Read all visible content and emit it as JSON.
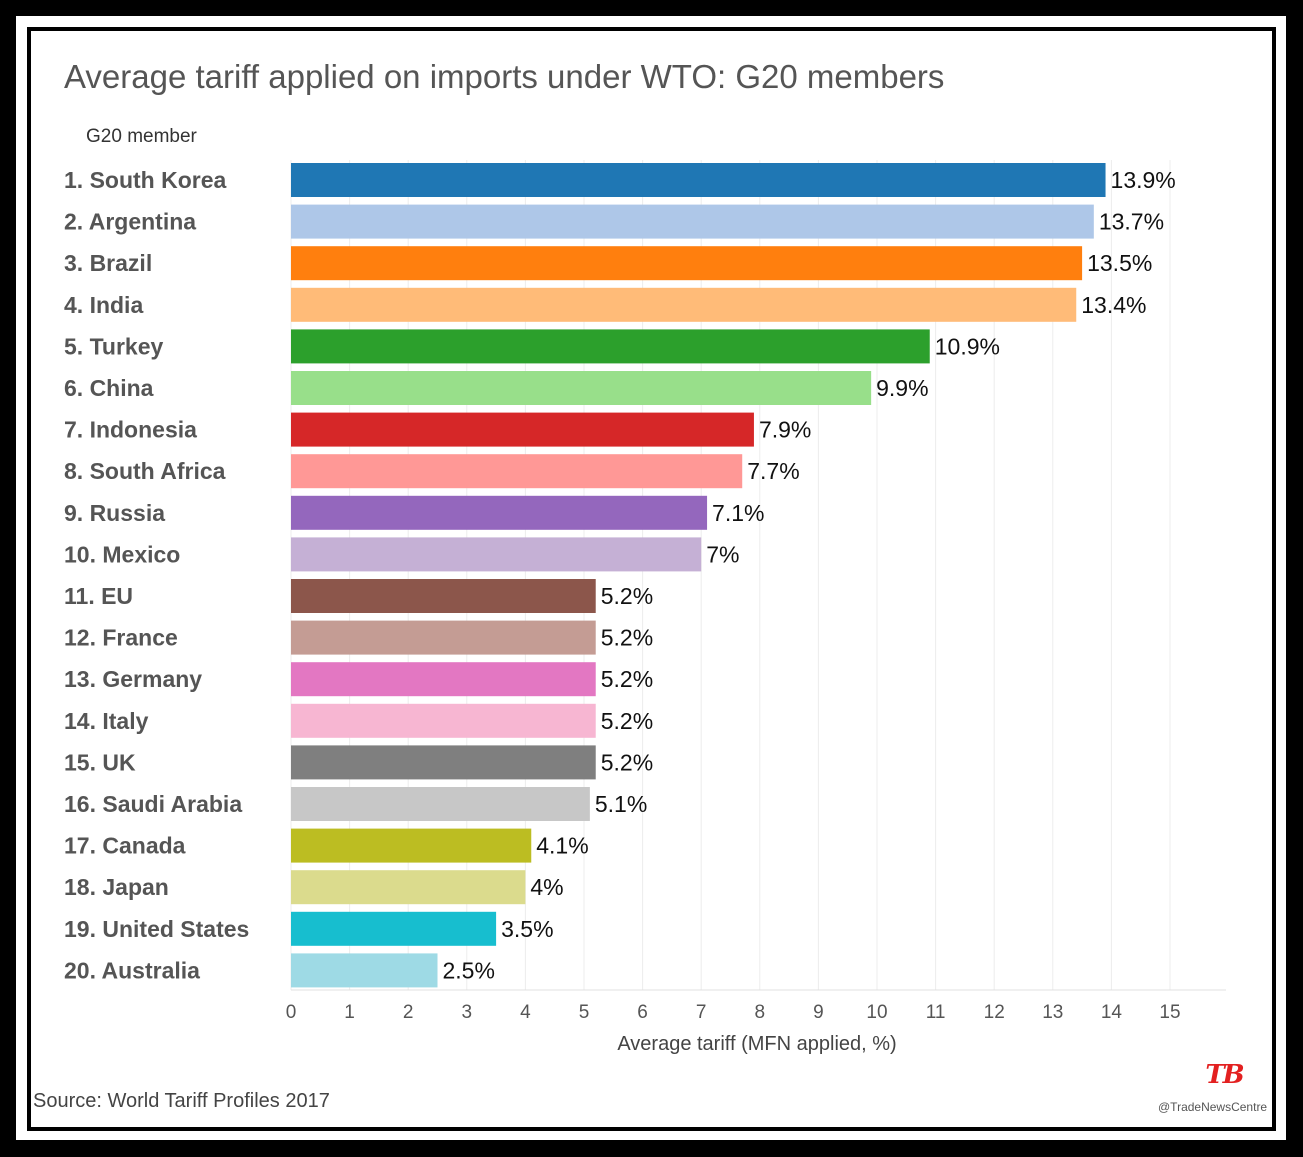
{
  "chart_data": {
    "type": "bar",
    "orientation": "horizontal",
    "title": "Average tariff applied on imports under WTO: G20 members",
    "category_axis_label": "G20 member",
    "xlabel": "Average tariff (MFN applied, %)",
    "xlim": [
      0,
      15
    ],
    "xticks": [
      0,
      1,
      2,
      3,
      4,
      5,
      6,
      7,
      8,
      9,
      10,
      11,
      12,
      13,
      14,
      15
    ],
    "grid": true,
    "categories": [
      "1. South Korea",
      "2. Argentina",
      "3. Brazil",
      "4. India",
      "5. Turkey",
      "6. China",
      "7. Indonesia",
      "8. South Africa",
      "9. Russia",
      "10. Mexico",
      "11. EU",
      "12. France",
      "13. Germany",
      "14. Italy",
      "15. UK",
      "16. Saudi Arabia",
      "17. Canada",
      "18. Japan",
      "19. United States",
      "20. Australia"
    ],
    "values": [
      13.9,
      13.7,
      13.5,
      13.4,
      10.9,
      9.9,
      7.9,
      7.7,
      7.1,
      7.0,
      5.2,
      5.2,
      5.2,
      5.2,
      5.2,
      5.1,
      4.1,
      4.0,
      3.5,
      2.5
    ],
    "data_labels": [
      "13.9%",
      "13.7%",
      "13.5%",
      "13.4%",
      "10.9%",
      "9.9%",
      "7.9%",
      "7.7%",
      "7.1%",
      "7%",
      "5.2%",
      "5.2%",
      "5.2%",
      "5.2%",
      "5.2%",
      "5.1%",
      "4.1%",
      "4%",
      "3.5%",
      "2.5%"
    ],
    "colors": [
      "#1f77b4",
      "#aec7e8",
      "#ff7f0e",
      "#ffbb78",
      "#2ca02c",
      "#98df8a",
      "#d62728",
      "#ff9896",
      "#9467bd",
      "#c5b0d5",
      "#8c564b",
      "#c49c94",
      "#e377c2",
      "#f7b6d2",
      "#7f7f7f",
      "#c7c7c7",
      "#bcbd22",
      "#dbdb8d",
      "#17becf",
      "#9edae5"
    ]
  },
  "source": "Source: World Tariff Profiles 2017",
  "logo": {
    "text": "TB",
    "color": "#e32020",
    "handle": "@TradeNewsCentre"
  }
}
